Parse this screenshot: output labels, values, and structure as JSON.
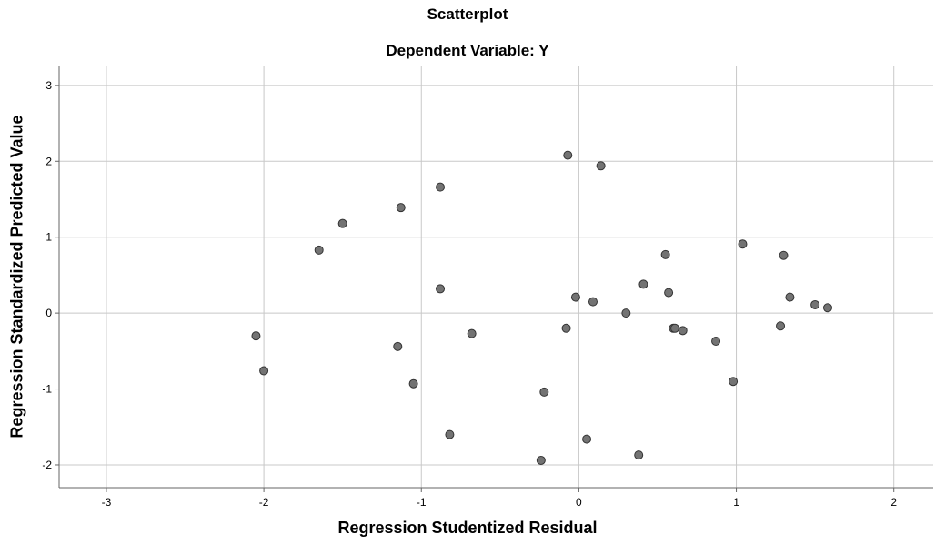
{
  "chart_data": {
    "type": "scatter",
    "title": "Scatterplot",
    "subtitle": "Dependent Variable: Y",
    "xlabel": "Regression Studentized Residual",
    "ylabel": "Regression Standardized Predicted Value",
    "xlim": [
      -3.3,
      2.25
    ],
    "ylim": [
      -2.3,
      3.25
    ],
    "xticks": [
      -3,
      -2,
      -1,
      0,
      1,
      2
    ],
    "yticks": [
      -2,
      -1,
      0,
      1,
      2,
      3
    ],
    "grid": true,
    "point_color": "#737373",
    "x": [
      -2.05,
      -2.0,
      -1.65,
      -1.5,
      -1.15,
      -1.13,
      -1.05,
      -0.88,
      -0.88,
      -0.82,
      -0.68,
      -0.24,
      -0.22,
      -0.08,
      -0.07,
      -0.02,
      0.05,
      0.09,
      0.14,
      0.3,
      0.38,
      0.41,
      0.55,
      0.57,
      0.6,
      0.61,
      0.66,
      0.87,
      0.98,
      1.04,
      1.28,
      1.3,
      1.34,
      1.5,
      1.58
    ],
    "y": [
      -0.3,
      -0.76,
      0.83,
      1.18,
      -0.44,
      1.39,
      -0.93,
      1.66,
      0.32,
      -1.6,
      -0.27,
      -1.94,
      -1.04,
      -0.2,
      2.08,
      0.21,
      -1.66,
      0.15,
      1.94,
      0.0,
      -1.87,
      0.38,
      0.77,
      0.27,
      -0.2,
      -0.2,
      -0.23,
      -0.37,
      -0.9,
      0.91,
      -0.17,
      0.76,
      0.21,
      0.11,
      0.07
    ]
  }
}
